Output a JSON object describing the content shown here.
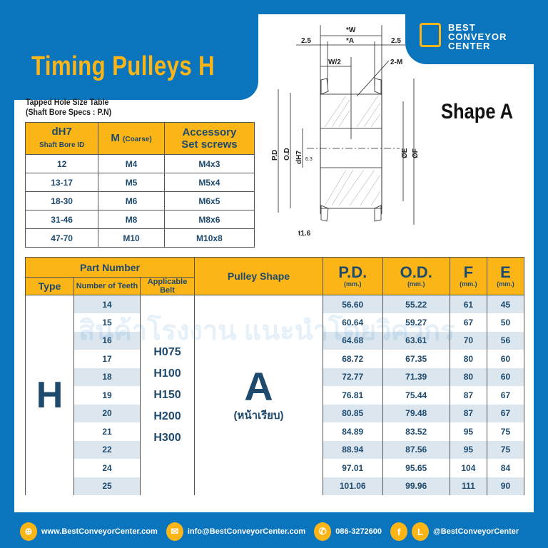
{
  "header": {
    "title": "Timing Pulleys H",
    "logo_text": "BEST CONVEYOR CENTER",
    "shape_label": "Shape A"
  },
  "colors": {
    "brand_blue": "#0a74bd",
    "accent_yellow": "#fbb516",
    "text": "#1e4a6e"
  },
  "diagram": {
    "labels": {
      "w": "*W",
      "a": "*A",
      "left_margin": "2.5",
      "right_margin": "2.5",
      "half_w": "W/2",
      "m": "2-M",
      "pd": "P.D",
      "od": "O.D",
      "dh7": "dH7",
      "roughness": "6.3",
      "e": "ØE",
      "f": "ØF",
      "thickness": "t1.6"
    }
  },
  "tapped_table": {
    "caption_line1": "Tapped Hole Size Table",
    "caption_line2": "(Shaft Bore Specs : P.N)",
    "headers": {
      "col1": "dH7",
      "col1_sub": "Shaft Bore ID",
      "col2": "M",
      "col2_sub": "(Coarse)",
      "col3_line1": "Accessory",
      "col3_line2": "Set screws"
    },
    "rows": [
      [
        "12",
        "M4",
        "M4x3"
      ],
      [
        "13-17",
        "M5",
        "M5x4"
      ],
      [
        "18-30",
        "M6",
        "M6x5"
      ],
      [
        "31-46",
        "M8",
        "M8x6"
      ],
      [
        "47-70",
        "M10",
        "M10x8"
      ]
    ]
  },
  "main_table": {
    "headers": {
      "part_number": "Part Number",
      "type": "Type",
      "teeth": "Number of Teeth",
      "belt": "Applicable Belt",
      "shape": "Pulley Shape",
      "pd": "P.D.",
      "od": "O.D.",
      "f": "F",
      "e": "E",
      "unit": "(mm.)"
    },
    "type": "H",
    "belts": [
      "H075",
      "H100",
      "H150",
      "H200",
      "H300"
    ],
    "shape": "A",
    "shape_note": "(หน้าเรียบ)",
    "rows": [
      [
        "14",
        "56.60",
        "55.22",
        "61",
        "45"
      ],
      [
        "15",
        "60.64",
        "59.27",
        "67",
        "50"
      ],
      [
        "16",
        "64.68",
        "63.61",
        "70",
        "56"
      ],
      [
        "17",
        "68.72",
        "67.35",
        "80",
        "60"
      ],
      [
        "18",
        "72.77",
        "71.39",
        "80",
        "60"
      ],
      [
        "19",
        "76.81",
        "75.44",
        "87",
        "67"
      ],
      [
        "20",
        "80.85",
        "79.48",
        "87",
        "67"
      ],
      [
        "21",
        "84.89",
        "83.52",
        "95",
        "75"
      ],
      [
        "22",
        "88.94",
        "87.56",
        "95",
        "75"
      ],
      [
        "24",
        "97.01",
        "95.65",
        "104",
        "84"
      ],
      [
        "25",
        "101.06",
        "99.96",
        "111",
        "90"
      ]
    ]
  },
  "watermark": "สินค้าโรงงาน แนะนำโดยวิศวกร",
  "footer": {
    "website": "www.BestConveyorCenter.com",
    "email": "info@BestConveyorCenter.com",
    "phone": "086-3272600",
    "social": "@BestConveyorCenter"
  }
}
